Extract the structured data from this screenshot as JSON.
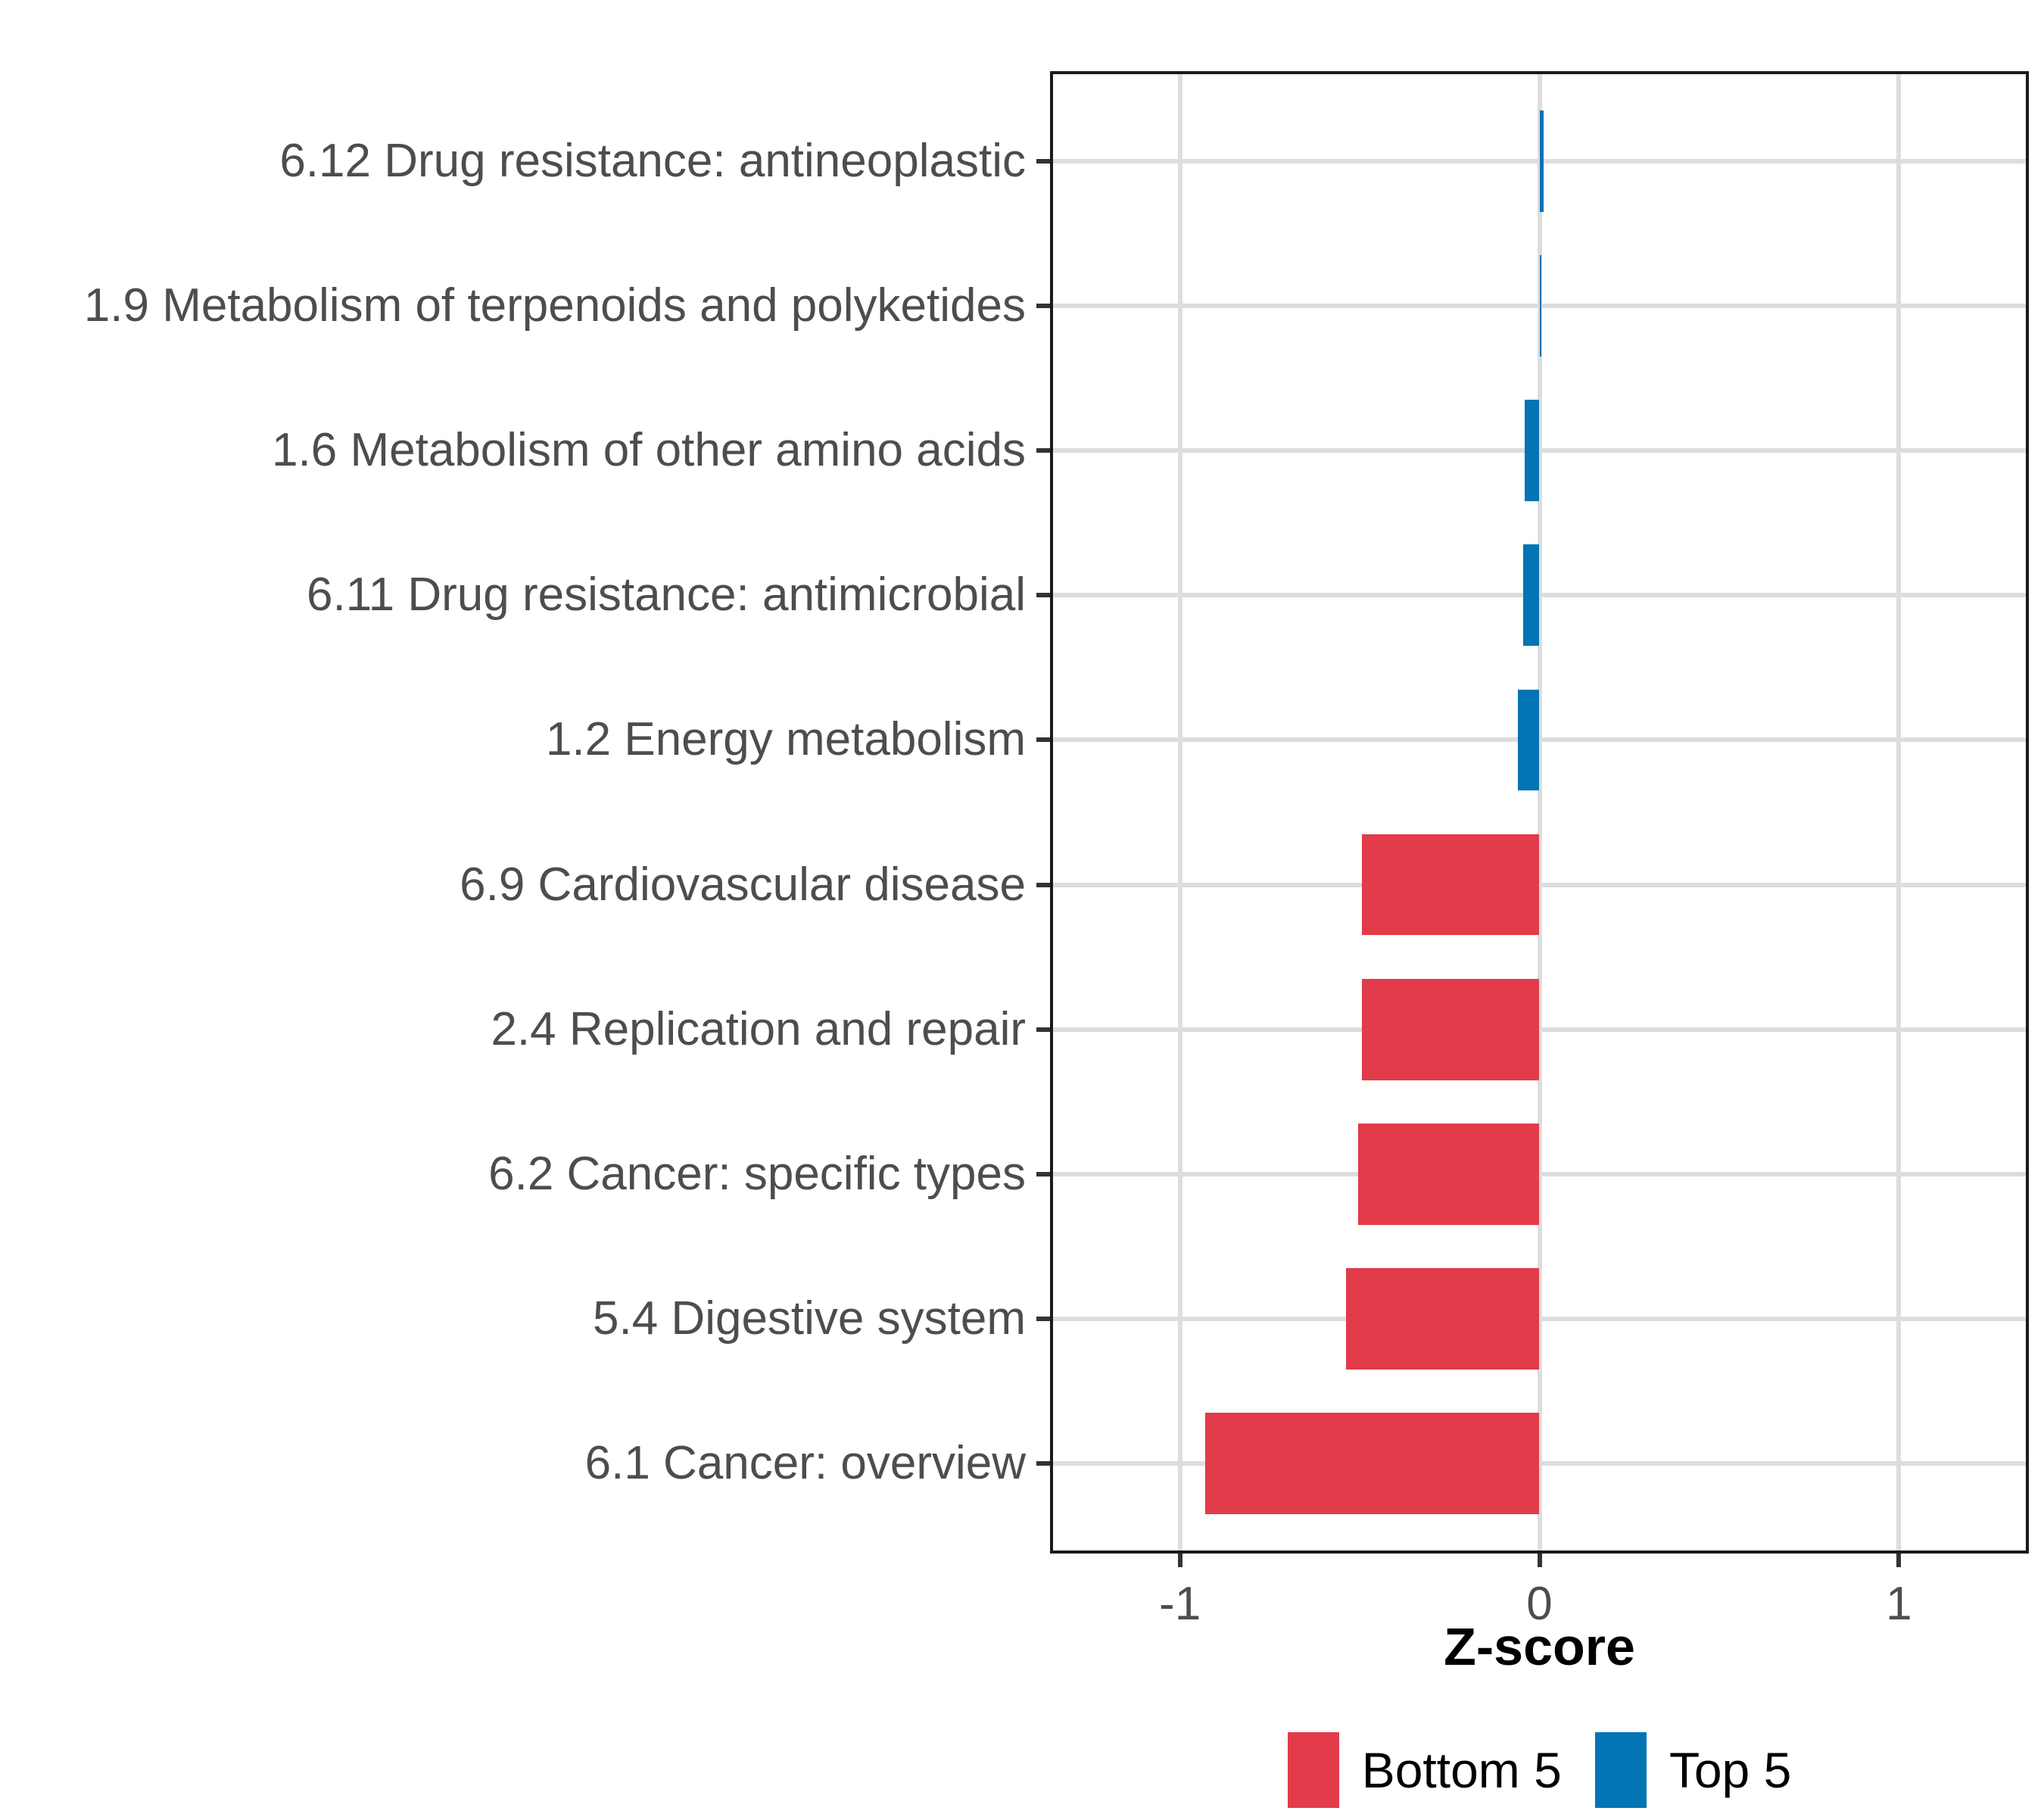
{
  "chart_data": {
    "type": "bar",
    "orientation": "horizontal",
    "title": "",
    "xlabel": "Z-score",
    "ylabel": "",
    "categories": [
      "6.12 Drug resistance: antineoplastic",
      "1.9 Metabolism of terpenoids and polyketides",
      "1.6 Metabolism of other amino acids",
      "6.11 Drug resistance: antimicrobial",
      "1.2 Energy metabolism",
      "6.9 Cardiovascular disease",
      "2.4 Replication and repair",
      "6.2 Cancer: specific types",
      "5.4 Digestive system",
      "6.1 Cancer: overview"
    ],
    "values": [
      0.012,
      0.004,
      -0.042,
      -0.046,
      -0.06,
      -0.493,
      -0.494,
      -0.505,
      -0.537,
      -0.93
    ],
    "groups": [
      "Top 5",
      "Top 5",
      "Top 5",
      "Top 5",
      "Top 5",
      "Bottom 5",
      "Bottom 5",
      "Bottom 5",
      "Bottom 5",
      "Bottom 5"
    ],
    "x_ticks": [
      -1,
      0,
      1
    ],
    "x_tick_labels": [
      "-1",
      "0",
      "1"
    ],
    "xlim": [
      -1.353,
      1.353
    ],
    "bar_width_fraction": 0.7,
    "row_expansion": 0.6,
    "grid": {
      "major": true,
      "minor": false
    },
    "legend_position": "bottom",
    "legend": [
      {
        "label": "Bottom 5",
        "color": "#E23B49"
      },
      {
        "label": "Top 5",
        "color": "#0374B4"
      }
    ]
  },
  "style": {
    "background": "#FFFFFF",
    "panel_border": "#1A1A1A",
    "gridline": "#DDDDDD",
    "tick_mark": "#333333",
    "axis_text": "#4D4D4D",
    "axis_title_text": "#000000",
    "legend_text": "#000000"
  }
}
